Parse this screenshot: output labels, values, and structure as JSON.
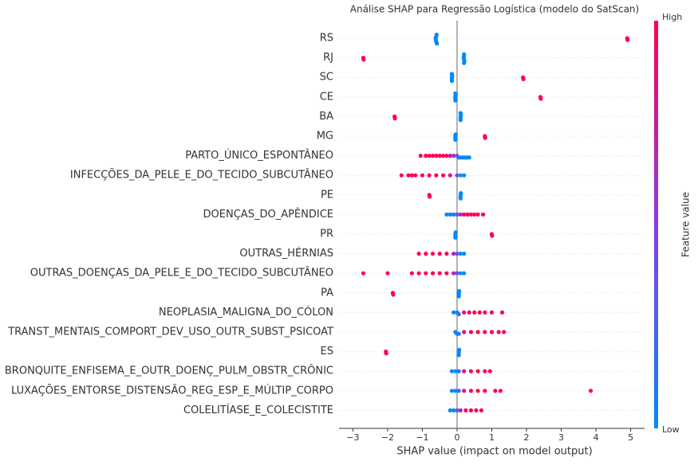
{
  "chart_data": {
    "type": "beeswarm",
    "title": "Análise SHAP para Regressão Logística (modelo do SatScan)",
    "x_label": "SHAP value (impact on model output)",
    "xlim": [
      -3.4,
      5.4
    ],
    "xticks": [
      {
        "value": -3,
        "label": "−3"
      },
      {
        "value": -2,
        "label": "−2"
      },
      {
        "value": -1,
        "label": "−1"
      },
      0,
      1,
      2,
      3,
      4,
      5
    ],
    "colorbar": {
      "label": "Feature value",
      "high": "High",
      "low": "Low",
      "low_color": "#008afb",
      "high_color": "#ff0052"
    },
    "features": [
      {
        "name": "RS",
        "values": [
          -0.62,
          -0.61,
          -0.6,
          -0.6,
          -0.59,
          -0.58,
          4.9,
          4.91
        ],
        "feature_values": [
          0,
          0,
          0,
          0,
          0,
          0,
          1,
          1
        ]
      },
      {
        "name": "RJ",
        "values": [
          0.19,
          0.2,
          0.2,
          0.21,
          0.2,
          0.2,
          -2.7,
          -2.69
        ],
        "feature_values": [
          0,
          0,
          0,
          0,
          0,
          0,
          1,
          1
        ]
      },
      {
        "name": "SC",
        "values": [
          -0.15,
          -0.15,
          -0.14,
          -0.15,
          -0.15,
          1.9,
          1.91
        ],
        "feature_values": [
          0,
          0,
          0,
          0,
          0,
          1,
          1
        ]
      },
      {
        "name": "CE",
        "values": [
          -0.05,
          -0.05,
          -0.04,
          -0.05,
          -0.05,
          2.4,
          2.41
        ],
        "feature_values": [
          0,
          0,
          0,
          0,
          0,
          1,
          1
        ]
      },
      {
        "name": "BA",
        "values": [
          0.1,
          0.1,
          0.11,
          0.1,
          0.1,
          -1.8,
          -1.79
        ],
        "feature_values": [
          0,
          0,
          0,
          0,
          0,
          1,
          1
        ]
      },
      {
        "name": "MG",
        "values": [
          -0.05,
          -0.05,
          -0.04,
          -0.05,
          0.8,
          0.81
        ],
        "feature_values": [
          0,
          0,
          0,
          0,
          1,
          1
        ]
      },
      {
        "name": "PARTO_ÚNICO_ESPONTÂNEO",
        "values": [
          -1.05,
          -0.9,
          -0.8,
          -0.7,
          -0.6,
          -0.5,
          -0.4,
          -0.3,
          -0.2,
          -0.1,
          0,
          0.05,
          0.1,
          0.15,
          0.2,
          0.25,
          0.3,
          0.35
        ],
        "feature_values": [
          1,
          1,
          1,
          1,
          1,
          1,
          1,
          0.9,
          0.8,
          0.6,
          0.3,
          0.2,
          0.1,
          0,
          0,
          0,
          0,
          0
        ]
      },
      {
        "name": "INFECÇÕES_DA_PELE_E_DO_TECIDO_SUBCUTÂNEO",
        "values": [
          -1.6,
          -1.4,
          -1.3,
          -1.2,
          -1.0,
          -0.8,
          -0.6,
          -0.4,
          -0.2,
          0,
          0.1,
          0.2
        ],
        "feature_values": [
          1,
          1,
          1,
          1,
          1,
          1,
          1,
          1,
          0.8,
          0.3,
          0,
          0
        ]
      },
      {
        "name": "PE",
        "values": [
          0.1,
          0.1,
          0.11,
          0.1,
          -0.8,
          -0.79
        ],
        "feature_values": [
          0,
          0,
          0,
          0,
          1,
          1
        ]
      },
      {
        "name": "DOENÇAS_DO_APÊNDICE",
        "values": [
          -0.3,
          -0.2,
          -0.1,
          0,
          0.1,
          0.2,
          0.3,
          0.4,
          0.5,
          0.6,
          0.75
        ],
        "feature_values": [
          0,
          0,
          0.1,
          0.3,
          0.7,
          0.9,
          1,
          1,
          1,
          1,
          1
        ]
      },
      {
        "name": "PR",
        "values": [
          -0.05,
          -0.05,
          -0.04,
          -0.05,
          1.0,
          1.01
        ],
        "feature_values": [
          0,
          0,
          0,
          0,
          1,
          1
        ]
      },
      {
        "name": "OUTRAS_HÉRNIAS",
        "values": [
          -1.1,
          -0.9,
          -0.7,
          -0.5,
          -0.3,
          -0.1,
          0,
          0.1,
          0.2
        ],
        "feature_values": [
          1,
          1,
          1,
          1,
          1,
          0.7,
          0.3,
          0,
          0
        ]
      },
      {
        "name": "OUTRAS_DOENÇAS_DA_PELE_E_DO_TECIDO_SUBCUTÂNEO",
        "values": [
          -2.7,
          -2.0,
          -1.3,
          -1.1,
          -0.9,
          -0.7,
          -0.5,
          -0.3,
          -0.1,
          0,
          0.1,
          0.2
        ],
        "feature_values": [
          1,
          1,
          1,
          1,
          1,
          1,
          1,
          1,
          0.7,
          0.3,
          0,
          0
        ]
      },
      {
        "name": "PA",
        "values": [
          0.05,
          0.05,
          0.06,
          0.05,
          -1.85,
          -1.84
        ],
        "feature_values": [
          0,
          0,
          0,
          0,
          1,
          1
        ]
      },
      {
        "name": "NEOPLASIA_MALIGNA_DO_CÓLON",
        "values": [
          -0.1,
          0,
          0.05,
          0.2,
          0.35,
          0.5,
          0.65,
          0.8,
          1.0,
          1.3
        ],
        "feature_values": [
          0,
          0,
          0.2,
          0.8,
          1,
          1,
          1,
          1,
          1,
          1
        ]
      },
      {
        "name": "TRANST_MENTAIS_COMPORT_DEV_USO_OUTR_SUBST_PSICOAT",
        "values": [
          -0.05,
          0,
          0.05,
          0.2,
          0.4,
          0.6,
          0.8,
          1.0,
          1.2,
          1.35
        ],
        "feature_values": [
          0,
          0,
          0.2,
          0.8,
          1,
          1,
          1,
          1,
          1,
          1
        ]
      },
      {
        "name": "ES",
        "values": [
          0.05,
          0.05,
          0.06,
          0.05,
          -2.05,
          -2.04
        ],
        "feature_values": [
          0,
          0,
          0,
          0,
          1,
          1
        ]
      },
      {
        "name": "BRONQUITE_ENFISEMA_E_OUTR_DOENÇ_PULM_OBSTR_CRÔNIC",
        "values": [
          -0.15,
          -0.05,
          0.05,
          0.2,
          0.4,
          0.6,
          0.8,
          0.95
        ],
        "feature_values": [
          0,
          0,
          0.2,
          0.8,
          1,
          1,
          1,
          1
        ]
      },
      {
        "name": "LUXAÇÕES_ENTORSE_DISTENSÃO_REG_ESP_E_MÚLTIP_CORPO",
        "values": [
          -0.15,
          -0.05,
          0.05,
          0.2,
          0.4,
          0.6,
          0.8,
          1.1,
          1.25,
          3.85
        ],
        "feature_values": [
          0,
          0,
          0.2,
          0.8,
          1,
          1,
          1,
          1,
          1,
          1
        ]
      },
      {
        "name": "COLELITÍASE_E_COLECISTITE",
        "values": [
          -0.2,
          -0.1,
          0,
          0.1,
          0.25,
          0.4,
          0.55,
          0.7
        ],
        "feature_values": [
          0,
          0,
          0.3,
          0.7,
          1,
          1,
          1,
          1
        ]
      }
    ]
  }
}
